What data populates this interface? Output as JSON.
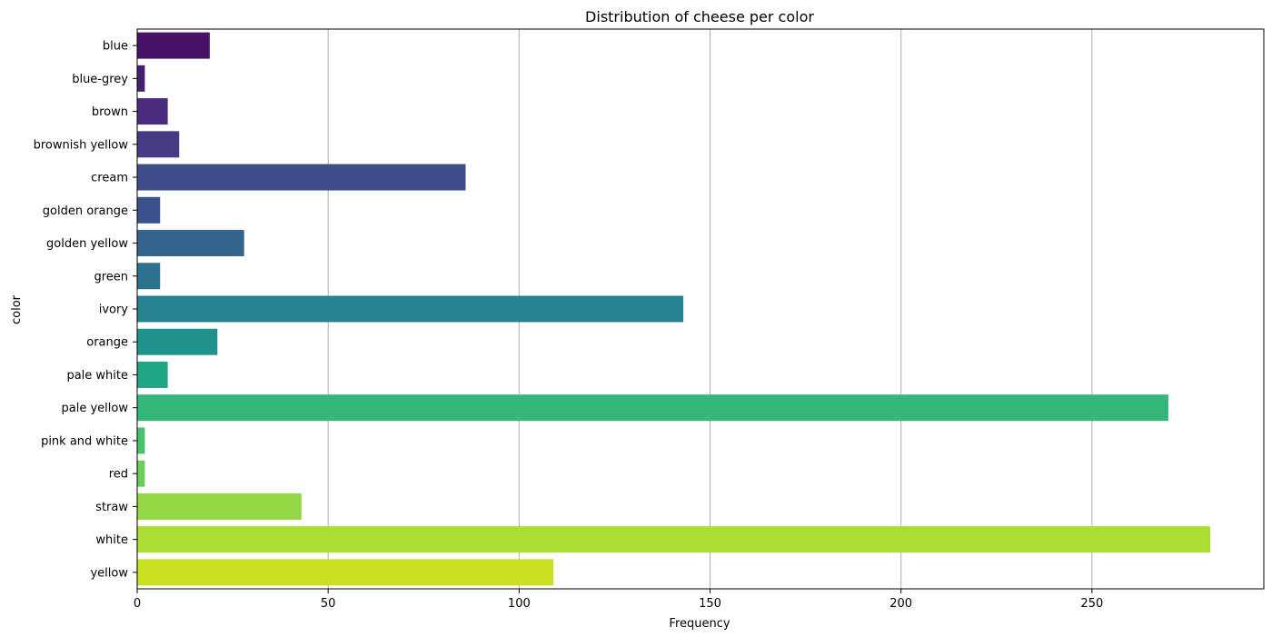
{
  "chart_data": {
    "type": "bar",
    "orientation": "horizontal",
    "title": "Distribution of cheese per color",
    "xlabel": "Frequency",
    "ylabel": "color",
    "xlim": [
      0,
      295
    ],
    "xticks": [
      0,
      50,
      100,
      150,
      200,
      250
    ],
    "grid": "x",
    "categories": [
      "blue",
      "blue-grey",
      "brown",
      "brownish yellow",
      "cream",
      "golden orange",
      "golden yellow",
      "green",
      "ivory",
      "orange",
      "pale white",
      "pale yellow",
      "pink and white",
      "red",
      "straw",
      "white",
      "yellow"
    ],
    "values": [
      19,
      2,
      8,
      11,
      86,
      6,
      28,
      6,
      143,
      21,
      8,
      270,
      2,
      2,
      43,
      281,
      109
    ],
    "colors": [
      "#471164",
      "#481f70",
      "#472d7b",
      "#443b84",
      "#3e4c8a",
      "#3b518b",
      "#32648e",
      "#2c718e",
      "#26828e",
      "#1f948c",
      "#21a685",
      "#35b779",
      "#4ac16d",
      "#6ccd5a",
      "#90d743",
      "#aadc32",
      "#c8e020"
    ]
  }
}
